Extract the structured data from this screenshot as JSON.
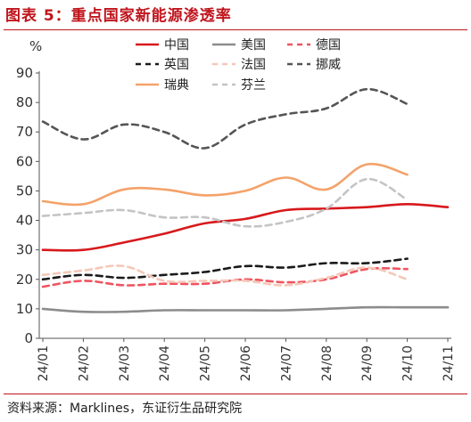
{
  "title": "图表 5：重点国家新能源渗透率",
  "source": "资料来源：Marklines，东证衍生品研究院",
  "chart_data": {
    "type": "line",
    "title": "重点国家新能源渗透率",
    "unit": "%",
    "xlabel": "",
    "ylabel": "",
    "ylim": [
      0,
      90
    ],
    "yticks": [
      0,
      10,
      20,
      30,
      40,
      50,
      60,
      70,
      80,
      90
    ],
    "categories": [
      "24/01",
      "24/02",
      "24/03",
      "24/04",
      "24/05",
      "24/06",
      "24/07",
      "24/08",
      "24/09",
      "24/10",
      "24/11"
    ],
    "grid": false,
    "legend_position": "top",
    "series": [
      {
        "name": "中国",
        "color": "#d7191c",
        "dash": "solid",
        "values": [
          30,
          30,
          32.5,
          35.5,
          39,
          40.5,
          43.5,
          44,
          44.5,
          45.5,
          44.5
        ]
      },
      {
        "name": "美国",
        "color": "#8c8c8c",
        "dash": "solid",
        "values": [
          10,
          9,
          9,
          9.5,
          9.5,
          9.5,
          9.5,
          10,
          10.5,
          10.5,
          10.5
        ]
      },
      {
        "name": "德国",
        "color": "#ee5560",
        "dash": "dash",
        "values": [
          17.5,
          19.5,
          18,
          18.5,
          18.5,
          20,
          19,
          20,
          23.5,
          23.5,
          null
        ]
      },
      {
        "name": "英国",
        "color": "#1a1a1a",
        "dash": "dash",
        "values": [
          20,
          21.5,
          20.5,
          21.5,
          22.5,
          24.5,
          24,
          25.5,
          25.5,
          27,
          null
        ]
      },
      {
        "name": "法国",
        "color": "#f4c8b8",
        "dash": "dash",
        "values": [
          21.5,
          23,
          24.5,
          19.5,
          19.5,
          19.5,
          18,
          20.5,
          24,
          20,
          null
        ]
      },
      {
        "name": "挪威",
        "color": "#555555",
        "dash": "dash",
        "values": [
          73.5,
          67.5,
          72.5,
          70,
          64.5,
          72.5,
          76,
          78,
          84.5,
          79.5,
          null
        ]
      },
      {
        "name": "瑞典",
        "color": "#f4a26a",
        "dash": "solid",
        "values": [
          46.5,
          45.5,
          50.5,
          50.5,
          48.5,
          50,
          54.5,
          50.5,
          59,
          55.5,
          null
        ]
      },
      {
        "name": "芬兰",
        "color": "#c4c4c4",
        "dash": "dash",
        "values": [
          41.5,
          42.5,
          43.5,
          41,
          41,
          38,
          39.5,
          44,
          54,
          47,
          null
        ]
      }
    ]
  }
}
